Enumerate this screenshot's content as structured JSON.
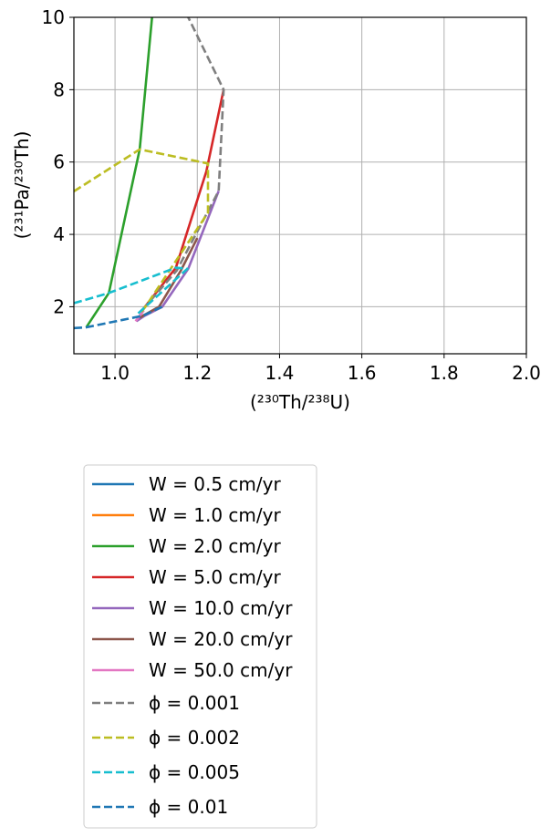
{
  "chart_data": {
    "type": "line",
    "title": "",
    "xlabel": "(²³⁰Th/²³⁸U)",
    "ylabel": "(²³¹Pa/²³⁰Th)",
    "xlim": [
      0.9,
      2.0
    ],
    "ylim": [
      0.7,
      10
    ],
    "xticks": [
      "1.0",
      "1.2",
      "1.4",
      "1.6",
      "1.8",
      "2.0"
    ],
    "xtick_values": [
      1.0,
      1.2,
      1.4,
      1.6,
      1.8,
      2.0
    ],
    "yticks": [
      "2",
      "4",
      "6",
      "8",
      "10"
    ],
    "ytick_values": [
      2,
      4,
      6,
      8,
      10
    ],
    "grid": true,
    "legend_placement": "below plot",
    "series": [
      {
        "name": "W = 0.5 cm/yr",
        "color": "#1f77b4",
        "style": "solid",
        "x": [
          1.067,
          1.115
        ],
        "y": [
          1.75,
          2.0
        ]
      },
      {
        "name": "W = 1.0 cm/yr",
        "color": "#ff7f0e",
        "style": "solid",
        "x": [
          1.067,
          1.115
        ],
        "y": [
          1.75,
          2.0
        ]
      },
      {
        "name": "W = 2.0 cm/yr",
        "color": "#2ca02c",
        "style": "solid",
        "x": [
          0.93,
          0.985,
          1.06,
          1.09
        ],
        "y": [
          1.43,
          2.38,
          6.35,
          10.0
        ]
      },
      {
        "name": "W = 5.0 cm/yr",
        "color": "#d62728",
        "style": "solid",
        "x": [
          1.07,
          1.148,
          1.222,
          1.264
        ],
        "y": [
          1.96,
          3.08,
          5.74,
          8.0
        ]
      },
      {
        "name": "W = 10.0 cm/yr",
        "color": "#9467bd",
        "style": "solid",
        "x": [
          1.052,
          1.072,
          1.115,
          1.178,
          1.252
        ],
        "y": [
          1.6,
          1.75,
          2.0,
          3.05,
          5.2
        ]
      },
      {
        "name": "W = 20.0 cm/yr",
        "color": "#8c564b",
        "style": "solid",
        "x": [
          1.06,
          1.107,
          1.16,
          1.2
        ],
        "y": [
          1.7,
          2.0,
          3.0,
          3.9
        ]
      },
      {
        "name": "W = 50.0 cm/yr",
        "color": "#e377c2",
        "style": "solid",
        "x": [
          1.05,
          1.07
        ],
        "y": [
          1.6,
          1.9
        ]
      },
      {
        "name": "ϕ = 0.001",
        "color": "#7f7f7f",
        "style": "dashed",
        "x": [
          1.067,
          1.15,
          1.252,
          1.264,
          1.178
        ],
        "y": [
          1.92,
          3.0,
          5.2,
          8.0,
          10.0
        ]
      },
      {
        "name": "ϕ = 0.002",
        "color": "#bcbd22",
        "style": "dashed",
        "x": [
          0.9,
          1.06,
          1.226,
          1.226,
          1.074,
          1.06
        ],
        "y": [
          5.19,
          6.35,
          5.96,
          4.6,
          2.0,
          1.8
        ]
      },
      {
        "name": "ϕ = 0.005",
        "color": "#17becf",
        "style": "dashed",
        "x": [
          0.9,
          0.985,
          1.148,
          1.176,
          1.074,
          1.05
        ],
        "y": [
          2.1,
          2.38,
          3.08,
          3.05,
          2.0,
          1.75
        ]
      },
      {
        "name": "ϕ = 0.01",
        "color": "#1f77b4",
        "style": "dashed",
        "x": [
          0.9,
          0.93,
          1.067,
          1.115
        ],
        "y": [
          1.41,
          1.43,
          1.75,
          2.0
        ]
      }
    ]
  }
}
